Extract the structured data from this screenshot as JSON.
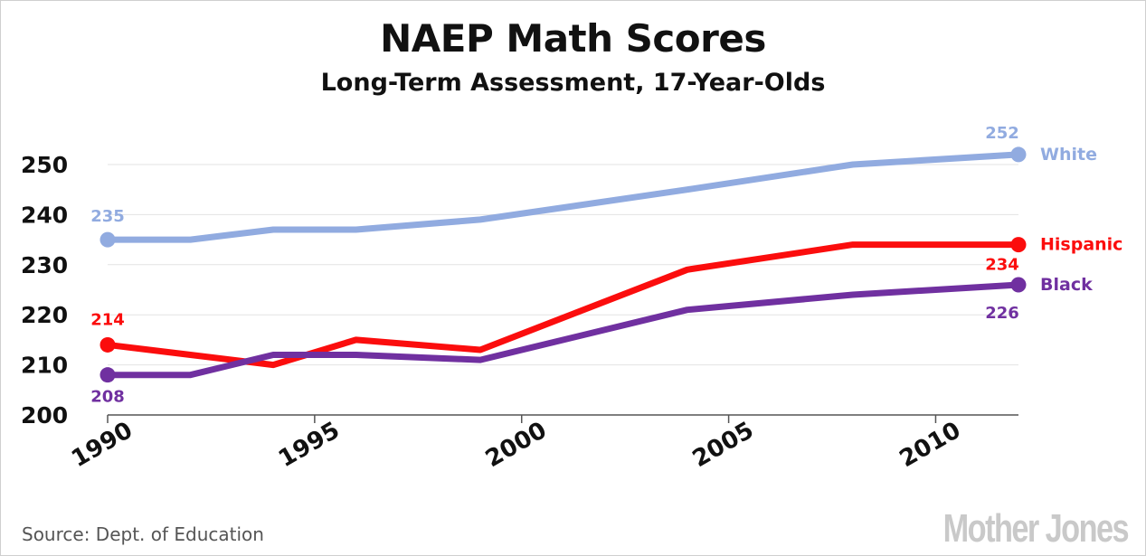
{
  "chart_data": {
    "type": "line",
    "title": "NAEP Math Scores",
    "subtitle": "Long-Term Assessment, 17-Year-Olds",
    "source": "Source: Dept. of Education",
    "brand": "Mother Jones",
    "xlabel": "",
    "ylabel": "",
    "xlim": [
      1990,
      2012
    ],
    "ylim": [
      200,
      250
    ],
    "x_ticks": [
      1990,
      1995,
      2000,
      2005,
      2010
    ],
    "y_ticks": [
      200,
      210,
      220,
      230,
      240,
      250
    ],
    "grid": true,
    "x": [
      1990,
      1992,
      1994,
      1996,
      1999,
      2004,
      2008,
      2012
    ],
    "series": [
      {
        "name": "White",
        "color": "#91abe0",
        "values": [
          235,
          235,
          237,
          237,
          239,
          245,
          250,
          252
        ],
        "start_label": "235",
        "end_label": "252"
      },
      {
        "name": "Hispanic",
        "color": "#fb0d0d",
        "values": [
          214,
          212,
          210,
          215,
          213,
          229,
          234,
          234
        ],
        "start_label": "214",
        "end_label": "234"
      },
      {
        "name": "Black",
        "color": "#7030a0",
        "values": [
          208,
          208,
          212,
          212,
          211,
          221,
          224,
          226
        ],
        "start_label": "208",
        "end_label": "226"
      }
    ]
  }
}
